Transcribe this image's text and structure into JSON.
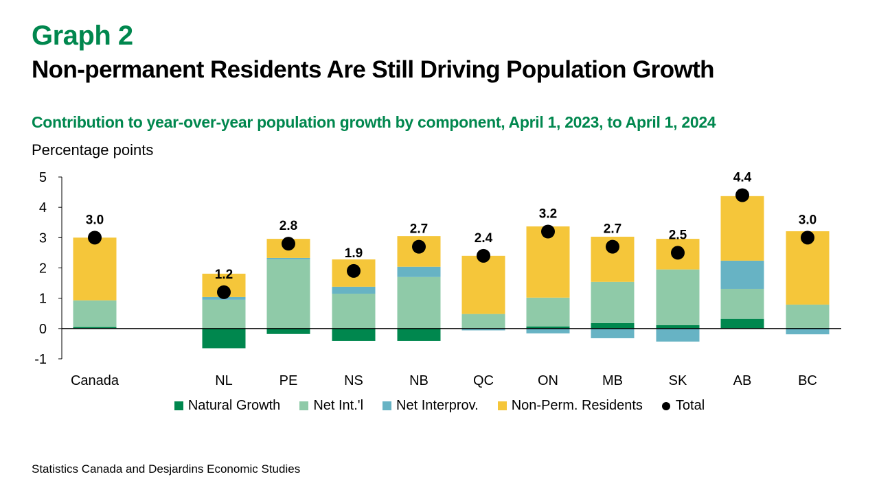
{
  "header": {
    "graph_label": "Graph 2",
    "title": "Non-permanent Residents Are Still Driving Population Growth",
    "subtitle": "Contribution to year-over-year population growth by component, April 1, 2023, to April 1, 2024",
    "unit": "Percentage points"
  },
  "source": "Statistics Canada and Desjardins Economic Studies",
  "chart_data": {
    "type": "bar",
    "stacked": true,
    "title": "Contribution to year-over-year population growth by component, April 1, 2023, to April 1, 2024",
    "xlabel": "",
    "ylabel": "Percentage points",
    "ylim": [
      -1,
      5
    ],
    "yticks": [
      -1,
      0,
      1,
      2,
      3,
      4,
      5
    ],
    "grid": false,
    "legend_position": "bottom",
    "categories": [
      "Canada",
      "NL",
      "PE",
      "NS",
      "NB",
      "QC",
      "ON",
      "MB",
      "SK",
      "AB",
      "BC"
    ],
    "series": [
      {
        "name": "Natural Growth",
        "color": "#00874E",
        "values": [
          0.05,
          -0.65,
          -0.18,
          -0.41,
          -0.41,
          0.0,
          0.07,
          0.18,
          0.11,
          0.32,
          0.02
        ]
      },
      {
        "name": "Net Int.'l",
        "color": "#8FCAA8",
        "values": [
          0.88,
          0.95,
          2.28,
          1.15,
          1.7,
          0.48,
          0.95,
          1.36,
          1.84,
          0.99,
          0.77
        ]
      },
      {
        "name": "Net Interprov.",
        "color": "#67B3C4",
        "values": [
          0.0,
          0.09,
          0.05,
          0.23,
          0.34,
          -0.06,
          -0.16,
          -0.32,
          -0.43,
          0.93,
          -0.19
        ]
      },
      {
        "name": "Non-Perm. Residents",
        "color": "#F5C63A",
        "values": [
          2.07,
          0.77,
          0.63,
          0.9,
          1.01,
          1.92,
          2.35,
          1.49,
          1.01,
          2.13,
          2.42
        ]
      }
    ],
    "total": {
      "name": "Total",
      "color": "#000000",
      "values": [
        3.0,
        1.2,
        2.8,
        1.9,
        2.7,
        2.4,
        3.2,
        2.7,
        2.5,
        4.4,
        3.0
      ],
      "labels": [
        "3.0",
        "1.2",
        "2.8",
        "1.9",
        "2.7",
        "2.4",
        "3.2",
        "2.7",
        "2.5",
        "4.4",
        "3.0"
      ]
    }
  }
}
